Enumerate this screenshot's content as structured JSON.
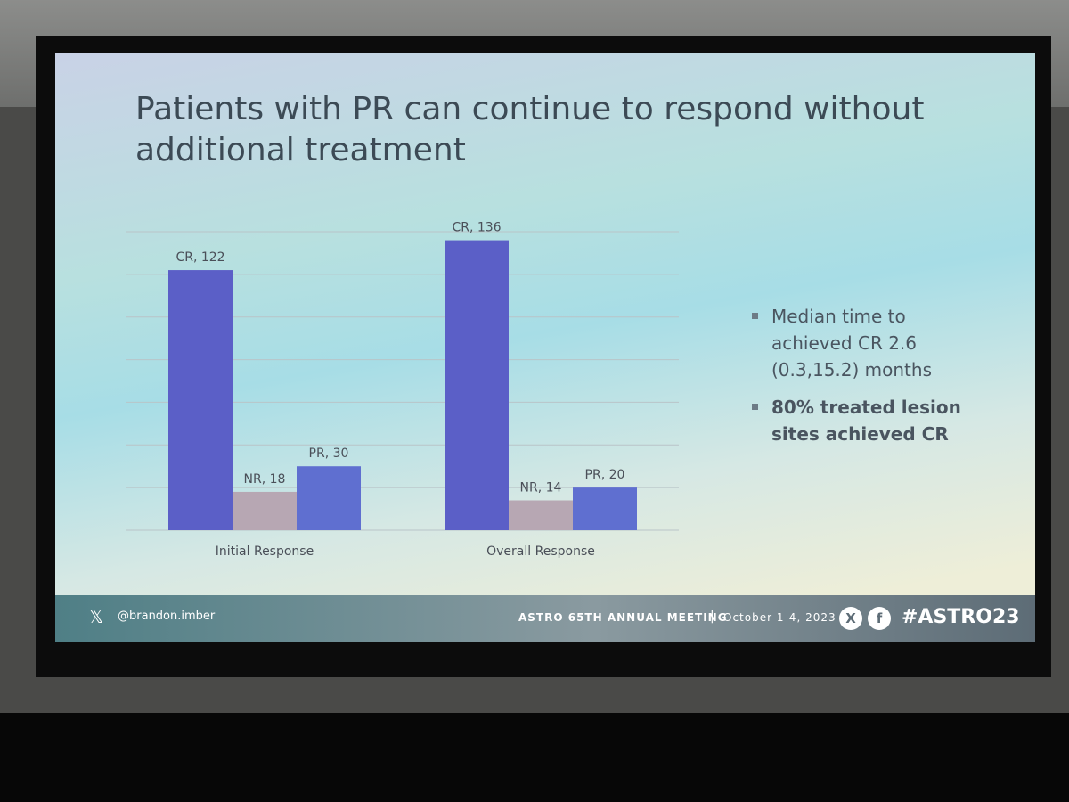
{
  "slide": {
    "title": "Patients with PR can continue to respond without additional treatment",
    "bullets": [
      "Median time to achieved CR 2.6 (0.3,15.2) months",
      "80% treated lesion sites achieved CR"
    ],
    "footer": {
      "handle": "@brandon.imber",
      "meeting": "ASTRO 65TH ANNUAL MEETING",
      "dates": "October 1-4, 2023",
      "hashtag": "#ASTRO23"
    }
  },
  "chart_data": {
    "type": "bar",
    "categories": [
      "Initial Response",
      "Overall Response"
    ],
    "series": [
      {
        "color": "#5b5fc7",
        "values": [
          122,
          136
        ],
        "value_labels": [
          "CR, 122",
          "CR, 136"
        ]
      },
      {
        "color": "#b7a7b3",
        "values": [
          18,
          14
        ],
        "value_labels": [
          "NR, 18",
          "NR, 14"
        ]
      },
      {
        "color": "#5f6fd0",
        "values": [
          30,
          20
        ],
        "value_labels": [
          "PR, 30",
          "PR, 20"
        ]
      }
    ],
    "ylim": [
      0,
      140
    ],
    "yticks": [
      0,
      20,
      40,
      60,
      80,
      100,
      120,
      140
    ],
    "grid": true
  }
}
